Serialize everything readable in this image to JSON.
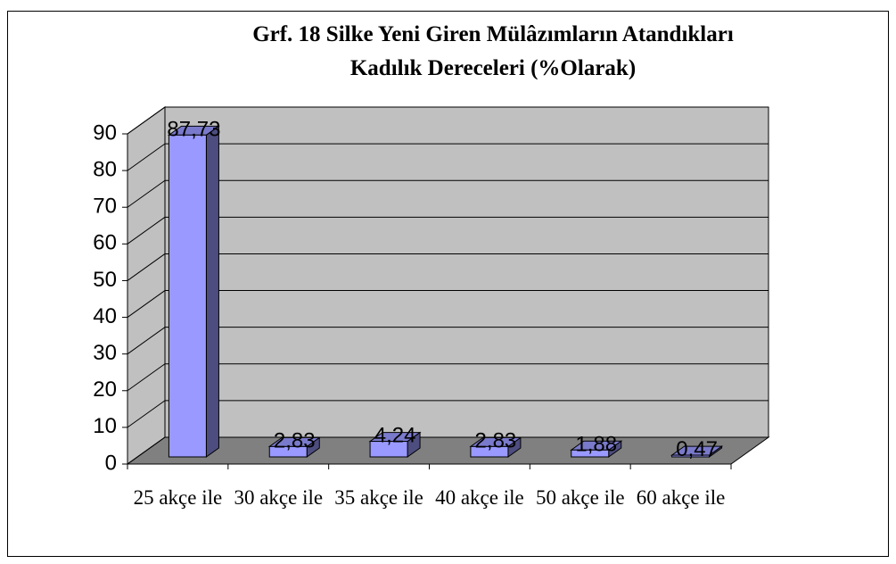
{
  "chart_data": {
    "type": "bar",
    "title": [
      "Grf. 18  Silke Yeni Giren Mülâzımların Atandıkları",
      "Kadılık Dereceleri (%Olarak)"
    ],
    "categories": [
      "25 akçe ile",
      "30 akçe ile",
      "35 akçe ile",
      "40 akçe ile",
      "50 akçe ile",
      "60 akçe ile"
    ],
    "values": [
      87.73,
      2.83,
      4.24,
      2.83,
      1.88,
      0.47
    ],
    "value_labels": [
      "87,73",
      "2,83",
      "4,24",
      "2,83",
      "1,88",
      "0,47"
    ],
    "color": "#9999ff",
    "ylim": [
      0,
      90
    ],
    "yticks": [
      0,
      10,
      20,
      30,
      40,
      50,
      60,
      70,
      80,
      90
    ],
    "grid": true
  }
}
